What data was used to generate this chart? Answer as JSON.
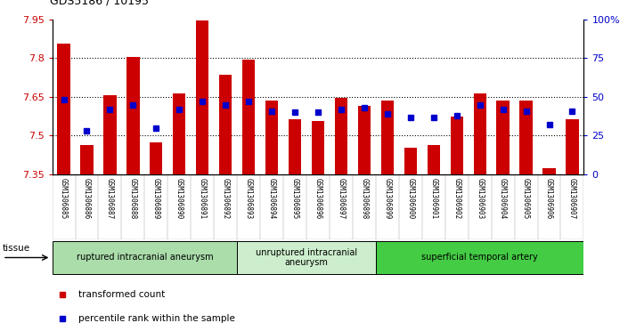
{
  "title": "GDS5186 / 10195",
  "samples": [
    "GSM1306885",
    "GSM1306886",
    "GSM1306887",
    "GSM1306888",
    "GSM1306889",
    "GSM1306890",
    "GSM1306891",
    "GSM1306892",
    "GSM1306893",
    "GSM1306894",
    "GSM1306895",
    "GSM1306896",
    "GSM1306897",
    "GSM1306898",
    "GSM1306899",
    "GSM1306900",
    "GSM1306901",
    "GSM1306902",
    "GSM1306903",
    "GSM1306904",
    "GSM1306905",
    "GSM1306906",
    "GSM1306907"
  ],
  "transformed_count": [
    7.855,
    7.465,
    7.655,
    7.805,
    7.475,
    7.665,
    7.945,
    7.735,
    7.795,
    7.635,
    7.565,
    7.555,
    7.645,
    7.615,
    7.635,
    7.455,
    7.465,
    7.575,
    7.665,
    7.635,
    7.635,
    7.375,
    7.565
  ],
  "percentile_rank": [
    48,
    28,
    42,
    45,
    30,
    42,
    47,
    45,
    47,
    41,
    40,
    40,
    42,
    43,
    39,
    37,
    37,
    38,
    45,
    42,
    41,
    32,
    41
  ],
  "ylim": [
    7.35,
    7.95
  ],
  "ylim_right": [
    0,
    100
  ],
  "yticks_left": [
    7.35,
    7.5,
    7.65,
    7.8,
    7.95
  ],
  "yticks_right": [
    0,
    25,
    50,
    75,
    100
  ],
  "ytick_labels_right": [
    "0",
    "25",
    "50",
    "75",
    "100%"
  ],
  "bar_color": "#cc0000",
  "dot_color": "#0000cc",
  "tick_bg_color": "#cccccc",
  "plot_bg_color": "#ffffff",
  "groups": [
    {
      "label": "ruptured intracranial aneurysm",
      "start": 0,
      "end": 8,
      "color": "#aaddaa"
    },
    {
      "label": "unruptured intracranial\naneurysm",
      "start": 8,
      "end": 14,
      "color": "#cceecc"
    },
    {
      "label": "superficial temporal artery",
      "start": 14,
      "end": 23,
      "color": "#44cc44"
    }
  ],
  "legend_items": [
    {
      "label": "transformed count",
      "color": "#cc0000"
    },
    {
      "label": "percentile rank within the sample",
      "color": "#0000cc"
    }
  ],
  "tissue_label": "tissue"
}
